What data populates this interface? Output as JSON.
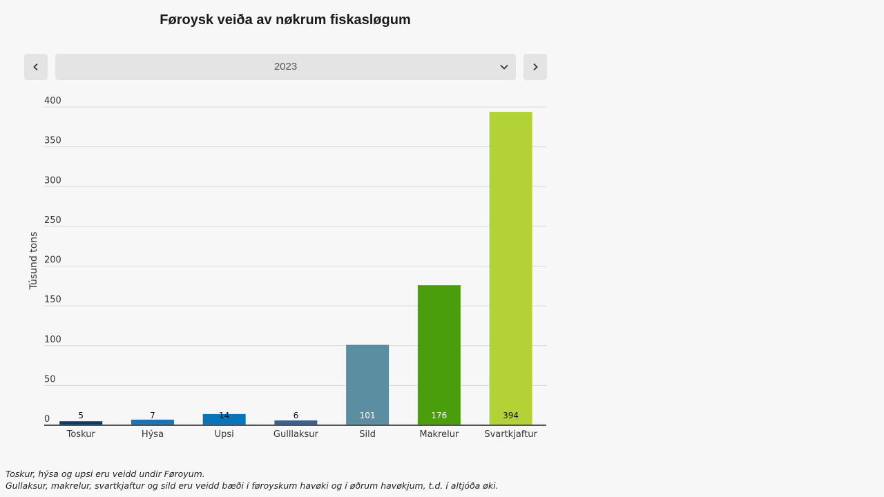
{
  "chart_data": {
    "type": "bar",
    "title": "Føroysk veiða av nøkrum fiskasløgum",
    "ylabel": "Túsund tons",
    "xlabel": "",
    "ylim": [
      0,
      400
    ],
    "yticks": [
      0,
      50,
      100,
      150,
      200,
      250,
      300,
      350,
      400
    ],
    "grid": true,
    "categories": [
      "Toskur",
      "Hýsa",
      "Upsi",
      "Gulllaksur",
      "Sild",
      "Makrelur",
      "Svartkjaftur"
    ],
    "values": [
      5,
      7,
      14,
      6,
      101,
      176,
      394
    ],
    "colors": [
      "#0b3c6e",
      "#1f72b0",
      "#0a74b8",
      "#3f5f8f",
      "#5a8ea0",
      "#4a9e0c",
      "#b2d235"
    ]
  },
  "controls": {
    "year": "2023",
    "prev_icon": "chevron-left-icon",
    "next_icon": "chevron-right-icon",
    "dropdown_icon": "chevron-down-icon"
  },
  "footnotes": [
    "Toskur, hýsa og upsi eru veidd undir Føroyum.",
    "Gullaksur, makrelur, svartkjaftur og sild eru veidd bæði í føroyskum havøki og í øðrum havøkjum, t.d. í altjóða øki."
  ]
}
